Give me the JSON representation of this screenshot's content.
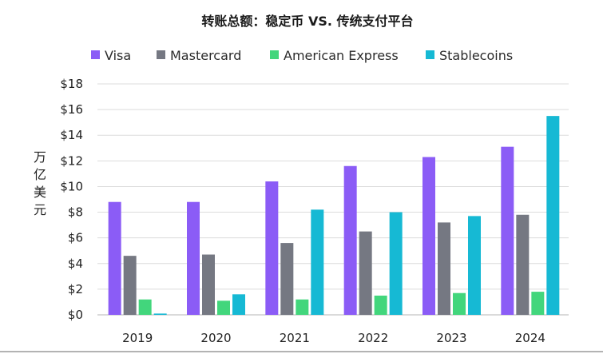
{
  "chart_data": {
    "type": "bar",
    "title": "转账总额：稳定币 VS. 传统支付平台",
    "ylabel": "万亿美元",
    "categories": [
      "2019",
      "2020",
      "2021",
      "2022",
      "2023",
      "2024"
    ],
    "ylim": [
      0,
      18
    ],
    "yticks": [
      0,
      2,
      4,
      6,
      8,
      10,
      12,
      14,
      16,
      18
    ],
    "ytick_labels": [
      "$0",
      "$2",
      "$4",
      "$6",
      "$8",
      "$10",
      "$12",
      "$14",
      "$16",
      "$18"
    ],
    "grid": true,
    "legend_position": "top",
    "series": [
      {
        "name": "Visa",
        "color": "#8b5cf6",
        "values": [
          8.8,
          8.8,
          10.4,
          11.6,
          12.3,
          13.1
        ]
      },
      {
        "name": "Mastercard",
        "color": "#757882",
        "values": [
          4.6,
          4.7,
          5.6,
          6.5,
          7.2,
          7.8
        ]
      },
      {
        "name": "American Express",
        "color": "#42d67c",
        "values": [
          1.2,
          1.1,
          1.2,
          1.5,
          1.7,
          1.8
        ]
      },
      {
        "name": "Stablecoins",
        "color": "#16b9d4",
        "values": [
          0.1,
          1.6,
          8.2,
          8.0,
          7.7,
          15.5
        ]
      }
    ]
  }
}
